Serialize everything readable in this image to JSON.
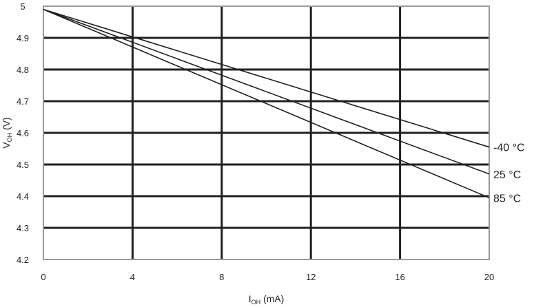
{
  "chart_data": {
    "type": "line",
    "xlabel": {
      "main": "I",
      "sub": "OH",
      "rest": " (mA)"
    },
    "ylabel": {
      "main": "V",
      "sub": "OH",
      "rest": " (V)"
    },
    "xlim": [
      0,
      20
    ],
    "ylim": [
      4.2,
      5
    ],
    "x_ticks": [
      "0",
      "4",
      "8",
      "12",
      "16",
      "20"
    ],
    "y_ticks": [
      "4.2",
      "4.3",
      "4.4",
      "4.5",
      "4.6",
      "4.7",
      "4.8",
      "4.9",
      "5"
    ],
    "grid": true,
    "series": [
      {
        "name": "-40 °C",
        "x": [
          0,
          20
        ],
        "y": [
          4.99,
          4.555
        ]
      },
      {
        "name": "25 °C",
        "x": [
          0,
          20
        ],
        "y": [
          4.99,
          4.47
        ]
      },
      {
        "name": "85 °C",
        "x": [
          0,
          20
        ],
        "y": [
          4.99,
          4.395
        ]
      }
    ],
    "colors": {
      "line": "#231f20",
      "grid": "#231f20",
      "frame": "#999999"
    }
  }
}
